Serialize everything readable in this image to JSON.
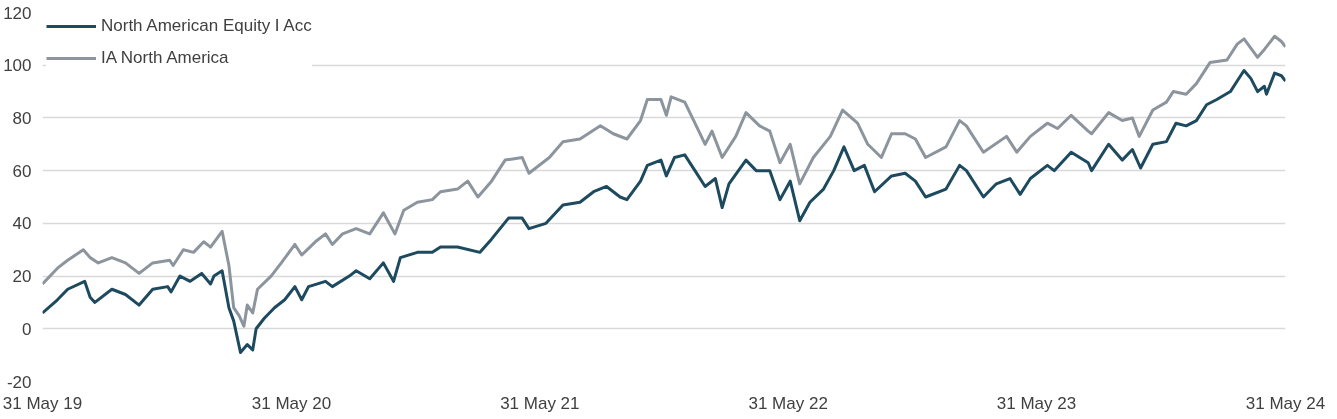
{
  "chart_data": {
    "type": "line",
    "xlim": [
      "2019-05-31",
      "2024-05-31"
    ],
    "xticks": [
      {
        "value": "2019-05-31",
        "label": "31 May 19"
      },
      {
        "value": "2020-05-31",
        "label": "31 May 20"
      },
      {
        "value": "2021-05-31",
        "label": "31 May 21"
      },
      {
        "value": "2022-05-31",
        "label": "31 May 22"
      },
      {
        "value": "2023-05-31",
        "label": "31 May 23"
      },
      {
        "value": "2024-05-31",
        "label": "31 May 24"
      }
    ],
    "ylim": [
      -20,
      120
    ],
    "yticks": [
      -20,
      0,
      20,
      40,
      60,
      80,
      100,
      120
    ],
    "grid": "y",
    "legend": "top left",
    "line_style": "solid",
    "marker": "none",
    "series": [
      {
        "name": "North American Equity I Acc",
        "color": "#1d4a5e",
        "x": [
          "2019-05-31",
          "2019-06-22",
          "2019-07-07",
          "2019-08-01",
          "2019-08-09",
          "2019-08-16",
          "2019-09-10",
          "2019-09-30",
          "2019-10-20",
          "2019-11-09",
          "2019-12-01",
          "2019-12-06",
          "2019-12-19",
          "2020-01-03",
          "2020-01-20",
          "2020-02-02",
          "2020-02-07",
          "2020-02-19",
          "2020-02-29",
          "2020-03-07",
          "2020-03-17",
          "2020-03-27",
          "2020-04-04",
          "2020-04-09",
          "2020-04-21",
          "2020-05-06",
          "2020-05-21",
          "2020-06-05",
          "2020-06-15",
          "2020-06-25",
          "2020-07-20",
          "2020-07-30",
          "2020-08-24",
          "2020-09-03",
          "2020-09-23",
          "2020-10-13",
          "2020-10-28",
          "2020-11-07",
          "2020-12-02",
          "2020-12-24",
          "2021-01-05",
          "2021-01-30",
          "2021-03-04",
          "2021-03-21",
          "2021-04-15",
          "2021-05-05",
          "2021-05-15",
          "2021-06-09",
          "2021-07-04",
          "2021-07-29",
          "2021-08-18",
          "2021-09-06",
          "2021-09-26",
          "2021-10-06",
          "2021-10-26",
          "2021-11-05",
          "2021-11-25",
          "2021-12-03",
          "2021-12-15",
          "2021-12-30",
          "2022-01-14",
          "2022-01-29",
          "2022-02-13",
          "2022-02-23",
          "2022-03-05",
          "2022-03-30",
          "2022-04-14",
          "2022-05-04",
          "2022-05-19",
          "2022-06-03",
          "2022-06-17",
          "2022-07-02",
          "2022-07-22",
          "2022-08-06",
          "2022-08-21",
          "2022-09-05",
          "2022-09-20",
          "2022-10-05",
          "2022-10-30",
          "2022-11-19",
          "2022-12-04",
          "2022-12-19",
          "2023-01-18",
          "2023-02-07",
          "2023-02-17",
          "2023-03-14",
          "2023-04-02",
          "2023-04-22",
          "2023-05-07",
          "2023-05-22",
          "2023-06-16",
          "2023-06-26",
          "2023-07-21",
          "2023-08-15",
          "2023-08-20",
          "2023-09-14",
          "2023-10-04",
          "2023-10-19",
          "2023-10-31",
          "2023-11-18",
          "2023-12-08",
          "2023-12-22",
          "2024-01-06",
          "2024-01-21",
          "2024-02-05",
          "2024-02-20",
          "2024-03-11",
          "2024-03-21",
          "2024-03-31",
          "2024-04-10",
          "2024-04-20",
          "2024-04-30",
          "2024-05-03",
          "2024-05-15",
          "2024-05-25",
          "2024-05-31"
        ],
        "values": [
          6,
          11,
          15,
          18,
          12,
          10,
          15,
          13,
          9,
          15,
          16,
          14,
          20,
          18,
          21,
          17,
          20,
          22,
          8,
          3,
          -9,
          -6,
          -8,
          0,
          4,
          8,
          11,
          16,
          11,
          16,
          18,
          16,
          20,
          22,
          19,
          25,
          18,
          27,
          29,
          29,
          31,
          31,
          29,
          34,
          42,
          42,
          38,
          40,
          47,
          48,
          52,
          54,
          50,
          49,
          56,
          62,
          64,
          58,
          65,
          66,
          60,
          54,
          57,
          46,
          55,
          64,
          60,
          60,
          49,
          56,
          41,
          48,
          53,
          60,
          69,
          60,
          62,
          52,
          58,
          59,
          56,
          50,
          53,
          62,
          60,
          50,
          55,
          57,
          51,
          57,
          62,
          60,
          67,
          63,
          60,
          70,
          64,
          68,
          61,
          70,
          71,
          78,
          77,
          79,
          85,
          87,
          90,
          94,
          98,
          95,
          90,
          92,
          89,
          97,
          96,
          94
        ]
      },
      {
        "name": "IA North America",
        "color": "#8c959d",
        "x": [
          "2019-05-31",
          "2019-06-22",
          "2019-07-07",
          "2019-07-30",
          "2019-08-09",
          "2019-08-21",
          "2019-09-10",
          "2019-09-30",
          "2019-10-20",
          "2019-11-09",
          "2019-12-04",
          "2019-12-09",
          "2019-12-24",
          "2020-01-08",
          "2020-01-23",
          "2020-02-02",
          "2020-02-19",
          "2020-02-29",
          "2020-03-07",
          "2020-03-15",
          "2020-03-22",
          "2020-03-27",
          "2020-04-04",
          "2020-04-11",
          "2020-05-01",
          "2020-05-16",
          "2020-06-05",
          "2020-06-15",
          "2020-07-05",
          "2020-07-20",
          "2020-07-30",
          "2020-08-14",
          "2020-09-03",
          "2020-09-23",
          "2020-10-13",
          "2020-10-30",
          "2020-11-12",
          "2020-12-02",
          "2020-12-24",
          "2021-01-05",
          "2021-01-30",
          "2021-02-14",
          "2021-03-01",
          "2021-03-21",
          "2021-04-10",
          "2021-05-05",
          "2021-05-15",
          "2021-06-14",
          "2021-07-04",
          "2021-07-29",
          "2021-08-28",
          "2021-09-16",
          "2021-10-06",
          "2021-10-26",
          "2021-11-05",
          "2021-11-25",
          "2021-12-03",
          "2021-12-10",
          "2021-12-30",
          "2022-01-14",
          "2022-01-29",
          "2022-02-08",
          "2022-02-23",
          "2022-03-15",
          "2022-03-30",
          "2022-04-19",
          "2022-05-04",
          "2022-05-19",
          "2022-06-03",
          "2022-06-17",
          "2022-07-07",
          "2022-08-01",
          "2022-08-19",
          "2022-09-10",
          "2022-09-25",
          "2022-10-15",
          "2022-10-30",
          "2022-11-19",
          "2022-12-04",
          "2022-12-19",
          "2023-01-18",
          "2023-02-07",
          "2023-02-17",
          "2023-03-14",
          "2023-04-17",
          "2023-05-02",
          "2023-05-22",
          "2023-06-16",
          "2023-07-01",
          "2023-07-21",
          "2023-08-15",
          "2023-08-20",
          "2023-09-14",
          "2023-10-04",
          "2023-10-19",
          "2023-10-29",
          "2023-11-18",
          "2023-12-08",
          "2023-12-18",
          "2024-01-06",
          "2024-01-21",
          "2024-02-10",
          "2024-03-06",
          "2024-03-21",
          "2024-03-31",
          "2024-04-20",
          "2024-04-30",
          "2024-05-15",
          "2024-05-25",
          "2024-05-31"
        ],
        "values": [
          17,
          23,
          26,
          30,
          27,
          25,
          27,
          25,
          21,
          25,
          26,
          24,
          30,
          29,
          33,
          31,
          37,
          24,
          8,
          5,
          1,
          9,
          6,
          15,
          20,
          25,
          32,
          28,
          33,
          36,
          32,
          36,
          38,
          36,
          44,
          36,
          45,
          48,
          49,
          52,
          53,
          56,
          50,
          56,
          64,
          65,
          59,
          65,
          71,
          72,
          77,
          74,
          72,
          79,
          87,
          87,
          81,
          88,
          86,
          78,
          70,
          75,
          65,
          73,
          82,
          77,
          75,
          63,
          70,
          55,
          65,
          73,
          83,
          78,
          70,
          65,
          74,
          74,
          72,
          65,
          69,
          79,
          77,
          67,
          73,
          67,
          73,
          78,
          76,
          81,
          75,
          74,
          82,
          79,
          80,
          73,
          83,
          86,
          90,
          89,
          93,
          101,
          102,
          108,
          110,
          103,
          106,
          111,
          109,
          107
        ]
      }
    ]
  }
}
